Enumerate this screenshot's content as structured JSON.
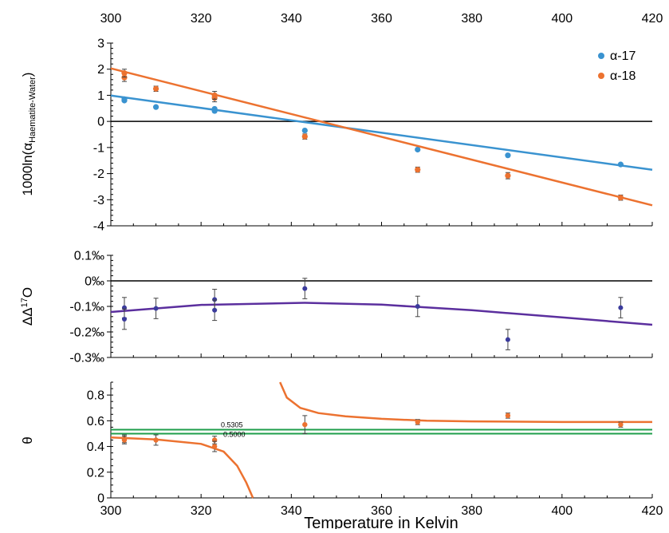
{
  "chart_data": [
    {
      "type": "scatter",
      "panel": "fractionation",
      "ylabel": "1000ln(α",
      "ylabel_sub": "Haematite-Water",
      "ylabel_close": ")",
      "top_xticks": [
        "300",
        "320",
        "340",
        "360",
        "380",
        "400",
        "420"
      ],
      "xlim": [
        300,
        420
      ],
      "ylim": [
        -4,
        3
      ],
      "yticks": [
        "3",
        "2",
        "1",
        "0",
        "-1",
        "-2",
        "-3",
        "-4"
      ],
      "legend": {
        "placement": "top-right"
      },
      "series": [
        {
          "name": "α-17",
          "color": "#3a93d0",
          "x": [
            303,
            303,
            310,
            323,
            323,
            343,
            368,
            388,
            413
          ],
          "y": [
            0.8,
            0.85,
            0.55,
            0.4,
            0.48,
            -0.35,
            -1.08,
            -1.3,
            -1.65
          ],
          "fit": {
            "slope": -0.0237,
            "intercept": 8.1
          }
        },
        {
          "name": "α-18",
          "color": "#ec7230",
          "x": [
            303,
            303,
            310,
            323,
            323,
            343,
            368,
            388,
            413
          ],
          "y": [
            1.68,
            1.85,
            1.25,
            0.9,
            1.0,
            -0.58,
            -1.85,
            -2.08,
            -2.92
          ],
          "err": [
            0.15,
            0.15,
            0.1,
            0.15,
            0.15,
            0.1,
            0.1,
            0.12,
            0.1
          ],
          "fit": {
            "slope": -0.0437,
            "intercept": 15.14
          }
        }
      ],
      "reference_line": 0
    },
    {
      "type": "scatter",
      "panel": "delta17",
      "ylabel": "ΔΔ",
      "ylabel_sup": "17",
      "ylabel_end": "O",
      "xlim": [
        300,
        420
      ],
      "ylim": [
        -0.3,
        0.1
      ],
      "yticks": [
        "0.1‰",
        "0‰",
        "-0.1‰",
        "-0.2‰",
        "-0.3‰"
      ],
      "series": [
        {
          "name": "ΔΔ17O",
          "color": "#3b3b9c",
          "line_color": "#5b2f9e",
          "x": [
            303,
            303,
            310,
            323,
            323,
            343,
            368,
            388,
            413
          ],
          "y": [
            -0.105,
            -0.15,
            -0.108,
            -0.073,
            -0.115,
            -0.03,
            -0.1,
            -0.23,
            -0.105
          ],
          "err": [
            0.04,
            0.04,
            0.04,
            0.04,
            0.04,
            0.04,
            0.04,
            0.04,
            0.04
          ],
          "fit": {
            "curve": [
              [
                300,
                -0.122
              ],
              [
                320,
                -0.094
              ],
              [
                343,
                -0.086
              ],
              [
                360,
                -0.093
              ],
              [
                380,
                -0.115
              ],
              [
                400,
                -0.143
              ],
              [
                420,
                -0.172
              ]
            ]
          }
        }
      ],
      "reference_line": 0
    },
    {
      "type": "scatter",
      "panel": "theta",
      "ylabel": "θ",
      "xlabel": "Temperature in Kelvin",
      "xlim": [
        300,
        420
      ],
      "ylim": [
        0,
        0.9
      ],
      "xticks": [
        "300",
        "320",
        "340",
        "360",
        "380",
        "400",
        "420"
      ],
      "yticks": [
        "0.8",
        "0.6",
        "0.4",
        "0.2",
        "0"
      ],
      "reference_lines": [
        {
          "value": 0.5305,
          "label": "0.5305",
          "color": "#1f9e4b"
        },
        {
          "value": 0.5,
          "label": "0.5000",
          "color": "#1f9e4b"
        }
      ],
      "series": [
        {
          "name": "θ",
          "color": "#ec7230",
          "x": [
            303,
            303,
            310,
            323,
            323,
            343,
            368,
            388,
            413
          ],
          "y": [
            0.46,
            0.45,
            0.45,
            0.45,
            0.4,
            0.57,
            0.59,
            0.64,
            0.57
          ],
          "err": [
            0.03,
            0.03,
            0.04,
            0.03,
            0.04,
            0.07,
            0.02,
            0.02,
            0.02
          ],
          "fit_left": [
            [
              300,
              0.47
            ],
            [
              310,
              0.455
            ],
            [
              320,
              0.42
            ],
            [
              325,
              0.36
            ],
            [
              328,
              0.25
            ],
            [
              330,
              0.12
            ],
            [
              331.5,
              0.0
            ]
          ],
          "fit_right": [
            [
              337.5,
              0.9
            ],
            [
              339,
              0.78
            ],
            [
              342,
              0.7
            ],
            [
              346,
              0.66
            ],
            [
              352,
              0.635
            ],
            [
              360,
              0.615
            ],
            [
              370,
              0.6
            ],
            [
              380,
              0.595
            ],
            [
              400,
              0.59
            ],
            [
              420,
              0.59
            ]
          ]
        }
      ]
    }
  ]
}
